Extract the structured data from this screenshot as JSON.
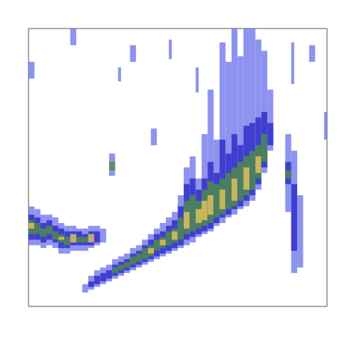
{
  "chart_data": {
    "type": "heatmap",
    "xlim": [
      0,
      100
    ],
    "ylim": [
      0,
      100
    ],
    "tick_labels": false,
    "grid": false,
    "value_range": [
      0,
      4
    ],
    "cells": [
      [
        0,
        2,
        22,
        36,
        1
      ],
      [
        0,
        2,
        24,
        33,
        2
      ],
      [
        0,
        2,
        26,
        31,
        3
      ],
      [
        0,
        2,
        28,
        30,
        4
      ],
      [
        2,
        4,
        22,
        35,
        1
      ],
      [
        2,
        4,
        24,
        32,
        2
      ],
      [
        2,
        4,
        26,
        30,
        3
      ],
      [
        4,
        6,
        21,
        33,
        1
      ],
      [
        4,
        6,
        23,
        30,
        2
      ],
      [
        4,
        6,
        25,
        28,
        3
      ],
      [
        6,
        8,
        22,
        33,
        1
      ],
      [
        6,
        8,
        24,
        31,
        2
      ],
      [
        6,
        8,
        26,
        29,
        3
      ],
      [
        8,
        10,
        21,
        32,
        1
      ],
      [
        8,
        10,
        23,
        29,
        2
      ],
      [
        8,
        10,
        24,
        27,
        3
      ],
      [
        10,
        12,
        19,
        30,
        1
      ],
      [
        10,
        12,
        21,
        28,
        2
      ],
      [
        10,
        12,
        23,
        26,
        3
      ],
      [
        10,
        12,
        24,
        25,
        4
      ],
      [
        12,
        14,
        19,
        29,
        1
      ],
      [
        12,
        14,
        21,
        27,
        2
      ],
      [
        12,
        14,
        22,
        25,
        3
      ],
      [
        14,
        16,
        20,
        29,
        1
      ],
      [
        14,
        16,
        22,
        27,
        2
      ],
      [
        14,
        16,
        23,
        26,
        4
      ],
      [
        16,
        18,
        20,
        28,
        1
      ],
      [
        16,
        18,
        22,
        27,
        2
      ],
      [
        16,
        18,
        23,
        25,
        3
      ],
      [
        18,
        20,
        20,
        28,
        1
      ],
      [
        18,
        20,
        22,
        26,
        2
      ],
      [
        18,
        20,
        23,
        25,
        3
      ],
      [
        20,
        22,
        21,
        29,
        1
      ],
      [
        20,
        22,
        22,
        27,
        2
      ],
      [
        20,
        22,
        23,
        26,
        4
      ],
      [
        22,
        24,
        22,
        29,
        1
      ],
      [
        22,
        24,
        23,
        27,
        2
      ],
      [
        24,
        26,
        23,
        28,
        1
      ],
      [
        18,
        20,
        5,
        8,
        1
      ],
      [
        20,
        22,
        6,
        11,
        1
      ],
      [
        20,
        22,
        7,
        9,
        2
      ],
      [
        22,
        24,
        7,
        13,
        1
      ],
      [
        22,
        24,
        8,
        11,
        2
      ],
      [
        24,
        26,
        8,
        14,
        1
      ],
      [
        24,
        26,
        9,
        12,
        2
      ],
      [
        26,
        28,
        9,
        15,
        1
      ],
      [
        26,
        28,
        10,
        13,
        2
      ],
      [
        28,
        30,
        10,
        17,
        1
      ],
      [
        28,
        30,
        11,
        15,
        2
      ],
      [
        28,
        30,
        12,
        14,
        3
      ],
      [
        30,
        32,
        11,
        18,
        1
      ],
      [
        30,
        32,
        12,
        16,
        2
      ],
      [
        30,
        32,
        13,
        15,
        3
      ],
      [
        32,
        34,
        12,
        19,
        1
      ],
      [
        32,
        34,
        13,
        17,
        2
      ],
      [
        32,
        34,
        14,
        16,
        3
      ],
      [
        34,
        36,
        13,
        21,
        1
      ],
      [
        34,
        36,
        14,
        19,
        2
      ],
      [
        34,
        36,
        15,
        18,
        3
      ],
      [
        36,
        38,
        14,
        22,
        1
      ],
      [
        36,
        38,
        15,
        20,
        2
      ],
      [
        36,
        38,
        16,
        19,
        3
      ],
      [
        38,
        40,
        15,
        24,
        1
      ],
      [
        38,
        40,
        16,
        22,
        2
      ],
      [
        38,
        40,
        17,
        21,
        3
      ],
      [
        40,
        42,
        16,
        26,
        1
      ],
      [
        40,
        42,
        17,
        24,
        2
      ],
      [
        40,
        42,
        18,
        22,
        3
      ],
      [
        40,
        42,
        19,
        21,
        4
      ],
      [
        42,
        44,
        17,
        28,
        1
      ],
      [
        42,
        44,
        18,
        26,
        2
      ],
      [
        42,
        44,
        20,
        24,
        3
      ],
      [
        44,
        46,
        18,
        30,
        1
      ],
      [
        44,
        46,
        19,
        27,
        2
      ],
      [
        44,
        46,
        21,
        25,
        3
      ],
      [
        44,
        46,
        22,
        24,
        4
      ],
      [
        46,
        48,
        19,
        32,
        1
      ],
      [
        46,
        48,
        20,
        29,
        2
      ],
      [
        46,
        48,
        22,
        27,
        3
      ],
      [
        48,
        50,
        20,
        34,
        1
      ],
      [
        48,
        50,
        21,
        31,
        2
      ],
      [
        48,
        50,
        23,
        28,
        3
      ],
      [
        48,
        50,
        24,
        27,
        4
      ],
      [
        50,
        52,
        21,
        40,
        1
      ],
      [
        50,
        52,
        22,
        36,
        2
      ],
      [
        50,
        52,
        24,
        32,
        3
      ],
      [
        52,
        54,
        22,
        50,
        1
      ],
      [
        52,
        54,
        24,
        44,
        2
      ],
      [
        52,
        54,
        26,
        38,
        3
      ],
      [
        52,
        54,
        28,
        34,
        4
      ],
      [
        54,
        56,
        23,
        54,
        1
      ],
      [
        54,
        56,
        25,
        46,
        2
      ],
      [
        54,
        56,
        27,
        40,
        3
      ],
      [
        56,
        58,
        25,
        46,
        1
      ],
      [
        56,
        58,
        26,
        42,
        2
      ],
      [
        56,
        58,
        28,
        38,
        3
      ],
      [
        56,
        58,
        30,
        35,
        4
      ],
      [
        58,
        60,
        26,
        62,
        1
      ],
      [
        58,
        60,
        27,
        46,
        2
      ],
      [
        58,
        60,
        29,
        42,
        3
      ],
      [
        58,
        60,
        31,
        38,
        4
      ],
      [
        60,
        62,
        27,
        78,
        1
      ],
      [
        60,
        62,
        28,
        52,
        2
      ],
      [
        60,
        62,
        30,
        45,
        3
      ],
      [
        60,
        62,
        33,
        40,
        4
      ],
      [
        62,
        64,
        29,
        60,
        1
      ],
      [
        62,
        64,
        30,
        48,
        2
      ],
      [
        62,
        64,
        32,
        44,
        3
      ],
      [
        64,
        66,
        30,
        95,
        1
      ],
      [
        64,
        66,
        32,
        60,
        2
      ],
      [
        64,
        66,
        33,
        46,
        3
      ],
      [
        64,
        66,
        35,
        42,
        4
      ],
      [
        66,
        68,
        32,
        88,
        1
      ],
      [
        66,
        68,
        33,
        55,
        2
      ],
      [
        66,
        68,
        35,
        48,
        3
      ],
      [
        68,
        70,
        33,
        100,
        1
      ],
      [
        68,
        70,
        35,
        62,
        2
      ],
      [
        68,
        70,
        36,
        50,
        3
      ],
      [
        68,
        70,
        38,
        46,
        4
      ],
      [
        70,
        72,
        35,
        90,
        1
      ],
      [
        70,
        72,
        36,
        58,
        2
      ],
      [
        70,
        72,
        38,
        52,
        3
      ],
      [
        72,
        74,
        36,
        100,
        1
      ],
      [
        72,
        74,
        38,
        65,
        2
      ],
      [
        72,
        74,
        40,
        54,
        3
      ],
      [
        72,
        74,
        42,
        50,
        4
      ],
      [
        74,
        76,
        38,
        100,
        1
      ],
      [
        74,
        76,
        40,
        66,
        2
      ],
      [
        74,
        76,
        42,
        56,
        3
      ],
      [
        76,
        78,
        42,
        96,
        1
      ],
      [
        76,
        78,
        44,
        68,
        2
      ],
      [
        76,
        78,
        46,
        58,
        3
      ],
      [
        76,
        78,
        48,
        54,
        4
      ],
      [
        78,
        80,
        48,
        92,
        1
      ],
      [
        78,
        80,
        50,
        70,
        2
      ],
      [
        78,
        80,
        52,
        62,
        3
      ],
      [
        80,
        82,
        56,
        78,
        1
      ],
      [
        80,
        82,
        58,
        66,
        2
      ],
      [
        86,
        88,
        34,
        62,
        1
      ],
      [
        86,
        88,
        44,
        52,
        2
      ],
      [
        86,
        88,
        46,
        49,
        3
      ],
      [
        88,
        90,
        12,
        56,
        1
      ],
      [
        88,
        90,
        20,
        44,
        2
      ],
      [
        90,
        92,
        14,
        40,
        1
      ],
      [
        0,
        2,
        82,
        88,
        1
      ],
      [
        14,
        16,
        94,
        100,
        1
      ],
      [
        34,
        36,
        88,
        94,
        1
      ],
      [
        27,
        29,
        47,
        55,
        1
      ],
      [
        27,
        29,
        49,
        52,
        3
      ],
      [
        41,
        43,
        58,
        64,
        1
      ],
      [
        47,
        48,
        89,
        96,
        1
      ],
      [
        94,
        96,
        88,
        94,
        1
      ],
      [
        99,
        100,
        60,
        70,
        1
      ],
      [
        30,
        31,
        81,
        86,
        1
      ],
      [
        56,
        57,
        77,
        86,
        1
      ],
      [
        88,
        89,
        80,
        95,
        1
      ]
    ]
  }
}
